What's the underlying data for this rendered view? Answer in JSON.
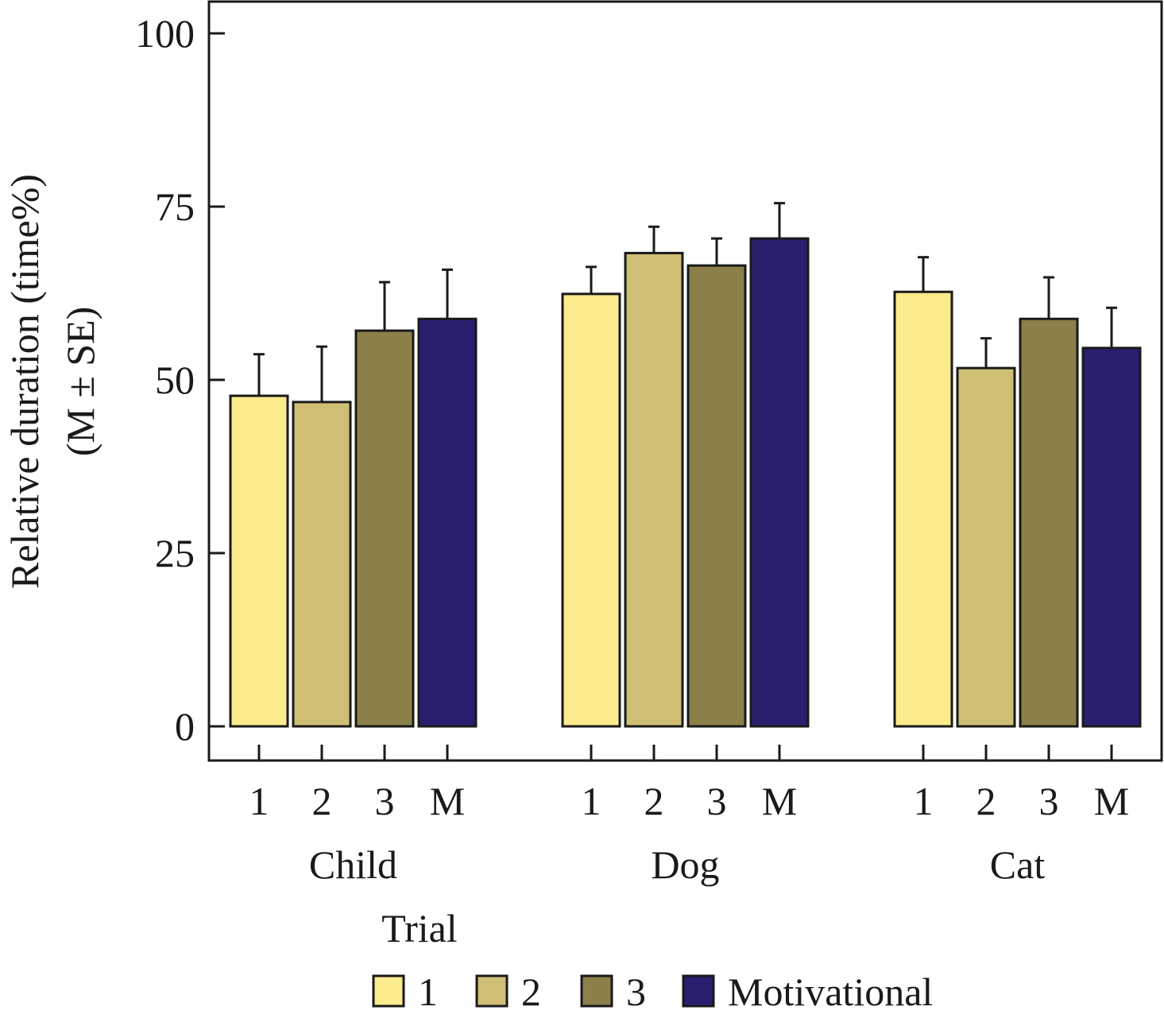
{
  "chart_data": {
    "type": "bar",
    "ylabel_line1": "Relative duration (time%)",
    "ylabel_line2": "(M ± SE)",
    "ylim": [
      0,
      100
    ],
    "yticks": [
      0,
      25,
      50,
      75,
      100
    ],
    "groups": [
      "Child",
      "Dog",
      "Cat"
    ],
    "bar_labels": [
      "1",
      "2",
      "3",
      "M"
    ],
    "legend_title": "Trial",
    "legend_position": "bottom",
    "grid": false,
    "series": [
      {
        "name": "1",
        "color": "#fbeb8c",
        "values": [
          47.7,
          62.4,
          62.7
        ],
        "se": [
          6.0,
          3.9,
          5.0
        ]
      },
      {
        "name": "2",
        "color": "#cfbf74",
        "values": [
          46.8,
          68.3,
          51.7
        ],
        "se": [
          8.0,
          3.8,
          4.3
        ]
      },
      {
        "name": "3",
        "color": "#8b7f4a",
        "values": [
          57.1,
          66.5,
          58.8
        ],
        "se": [
          7.0,
          3.9,
          6.0
        ]
      },
      {
        "name": "Motivational",
        "color": "#271f6e",
        "values": [
          58.8,
          70.4,
          54.6
        ],
        "se": [
          7.1,
          5.1,
          5.8
        ]
      }
    ]
  }
}
